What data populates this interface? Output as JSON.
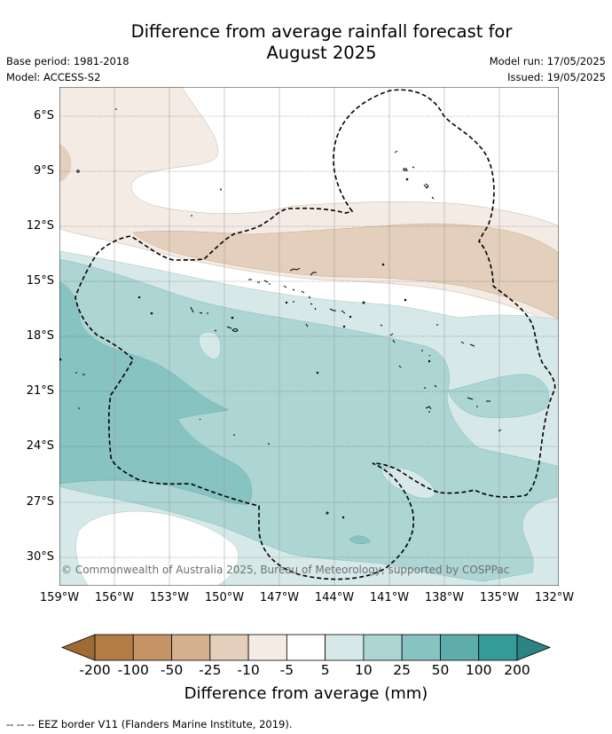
{
  "title": "Difference from average rainfall forecast for August 2025",
  "title_line1": "Difference from average rainfall forecast for",
  "title_line2": "August 2025",
  "base_period": "Base period: 1981-2018",
  "model": "Model: ACCESS-S2",
  "model_run": "Model run: 17/05/2025",
  "issued": "Issued: 19/05/2025",
  "copyright": "© Commonwealth of Australia 2025, Bureau of Meteorology, supported by COSPPac",
  "lat_labels": [
    "6°S",
    "9°S",
    "12°S",
    "15°S",
    "18°S",
    "21°S",
    "24°S",
    "27°S",
    "30°S"
  ],
  "lon_labels": [
    "159°W",
    "156°W",
    "153°W",
    "150°W",
    "147°W",
    "144°W",
    "141°W",
    "138°W",
    "135°W",
    "132°W"
  ],
  "colorbar": {
    "title": "Difference from average (mm)",
    "tick_labels": [
      "-200",
      "-100",
      "-50",
      "-25",
      "-10",
      "-5",
      "5",
      "10",
      "25",
      "50",
      "100",
      "200"
    ],
    "colors": [
      "#9e6b35",
      "#b37b45",
      "#c49467",
      "#d4b08f",
      "#e3cfbc",
      "#f4ebe5",
      "#ffffff",
      "#d6e9e8",
      "#acd5d4",
      "#87c3c1",
      "#5fadab",
      "#349b98",
      "#2a8481"
    ]
  },
  "legend_footer": "--  --  -- EEZ border V11 (Flanders Marine Institute, 2019).",
  "colors": {
    "dry_light": "#f4ebe5",
    "dry_mid": "#e3cfbc",
    "dry_strong": "#d4b08f",
    "wet_light": "#d6e9e8",
    "wet_mid": "#acd5d4",
    "wet_strong": "#87c3c1",
    "wet_stronger": "#5fadab"
  }
}
